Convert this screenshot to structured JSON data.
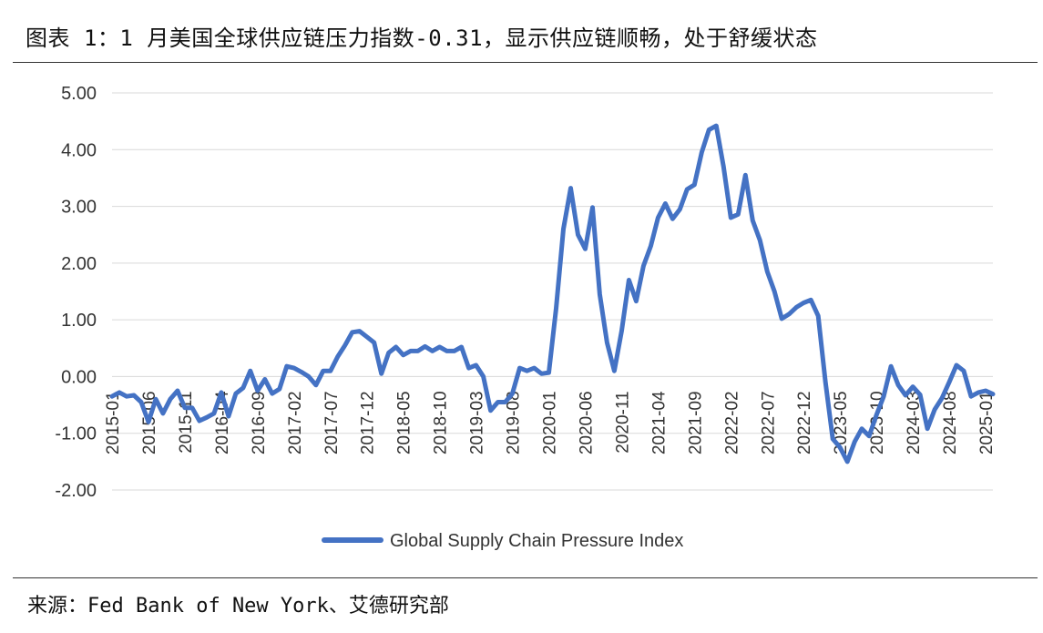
{
  "title": "图表 1：1 月美国全球供应链压力指数-0.31，显示供应链顺畅，处于舒缓状态",
  "source": "来源：Fed Bank of New York、艾德研究部",
  "chart_data": {
    "type": "line",
    "ylim": [
      -2,
      5
    ],
    "yticks": [
      "-2.00",
      "-1.00",
      "0.00",
      "1.00",
      "2.00",
      "3.00",
      "4.00",
      "5.00"
    ],
    "grid": "horizontal",
    "legend_placement": "bottom-center",
    "x_tick_labels": [
      "2015-01",
      "2015-06",
      "2015-11",
      "2016-04",
      "2016-09",
      "2017-02",
      "2017-07",
      "2017-12",
      "2018-05",
      "2018-10",
      "2019-03",
      "2019-08",
      "2020-01",
      "2020-06",
      "2020-11",
      "2021-04",
      "2021-09",
      "2022-02",
      "2022-07",
      "2022-12",
      "2023-05",
      "2023-10",
      "2024-03",
      "2024-08",
      "2025-01"
    ],
    "series": [
      {
        "name": "Global Supply Chain Pressure Index",
        "color": "#4472C4",
        "start": "2015-01",
        "values": [
          -0.35,
          -0.28,
          -0.35,
          -0.33,
          -0.45,
          -0.8,
          -0.4,
          -0.65,
          -0.4,
          -0.25,
          -0.55,
          -0.55,
          -0.78,
          -0.72,
          -0.65,
          -0.28,
          -0.7,
          -0.3,
          -0.2,
          0.1,
          -0.25,
          -0.05,
          -0.3,
          -0.22,
          0.18,
          0.15,
          0.08,
          0.0,
          -0.15,
          0.1,
          0.1,
          0.35,
          0.55,
          0.78,
          0.8,
          0.7,
          0.6,
          0.05,
          0.42,
          0.52,
          0.38,
          0.45,
          0.45,
          0.53,
          0.45,
          0.52,
          0.45,
          0.45,
          0.52,
          0.15,
          0.2,
          0.0,
          -0.6,
          -0.45,
          -0.45,
          -0.3,
          0.15,
          0.1,
          0.15,
          0.05,
          0.07,
          1.2,
          2.6,
          3.32,
          2.5,
          2.25,
          2.98,
          1.45,
          0.6,
          0.1,
          0.8,
          1.7,
          1.33,
          1.95,
          2.3,
          2.8,
          3.05,
          2.78,
          2.95,
          3.3,
          3.38,
          3.95,
          4.35,
          4.42,
          3.7,
          2.8,
          2.86,
          3.55,
          2.75,
          2.4,
          1.85,
          1.5,
          1.02,
          1.1,
          1.22,
          1.3,
          1.35,
          1.07,
          -0.1,
          -1.1,
          -1.25,
          -1.5,
          -1.15,
          -0.92,
          -1.05,
          -0.68,
          -0.35,
          0.18,
          -0.15,
          -0.33,
          -0.18,
          -0.32,
          -0.92,
          -0.58,
          -0.38,
          -0.1,
          0.2,
          0.1,
          -0.35,
          -0.28,
          -0.25,
          -0.31
        ]
      }
    ]
  }
}
